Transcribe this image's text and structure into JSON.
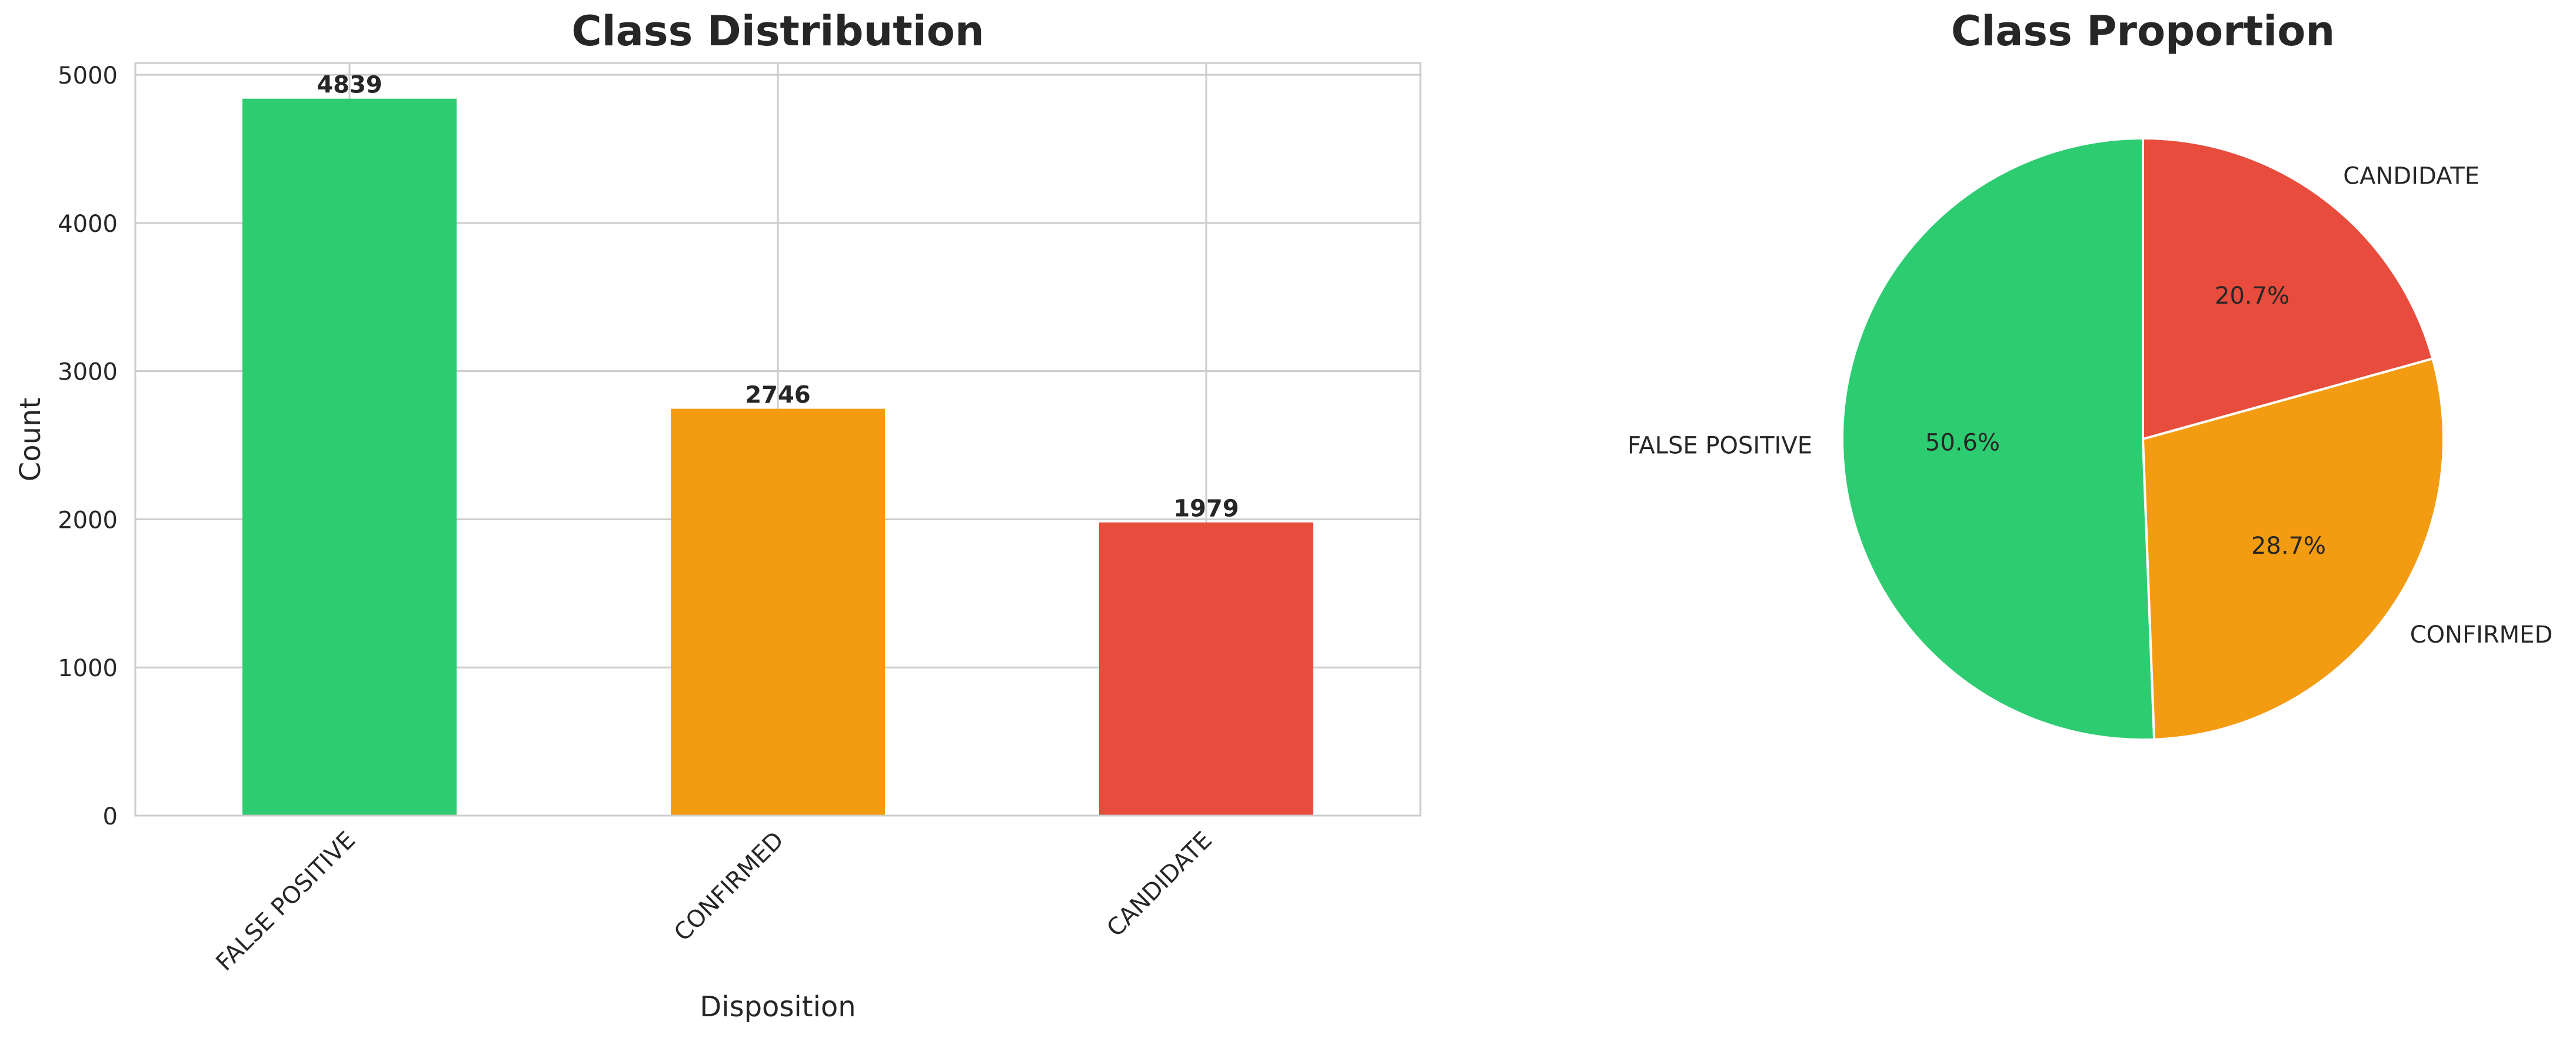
{
  "chart_data": [
    {
      "type": "bar",
      "title": "Class Distribution",
      "xlabel": "Disposition",
      "ylabel": "Count",
      "categories": [
        "FALSE POSITIVE",
        "CONFIRMED",
        "CANDIDATE"
      ],
      "values": [
        4839,
        2746,
        1979
      ],
      "value_labels": [
        "4839",
        "2746",
        "1979"
      ],
      "colors": [
        "#2ecc71",
        "#f39c12",
        "#e74c3c"
      ],
      "ylim": [
        0,
        5080
      ],
      "yticks": [
        0,
        1000,
        2000,
        3000,
        4000,
        5000
      ],
      "ytick_labels": [
        "0",
        "1000",
        "2000",
        "3000",
        "4000",
        "5000"
      ],
      "grid": true,
      "xtick_rotation": -45
    },
    {
      "type": "pie",
      "title": "Class Proportion",
      "labels": [
        "FALSE POSITIVE",
        "CONFIRMED",
        "CANDIDATE"
      ],
      "values": [
        4839,
        2746,
        1979
      ],
      "percent_labels": [
        "50.6%",
        "28.7%",
        "20.7%"
      ],
      "colors": [
        "#2ecc71",
        "#f39c12",
        "#e74c3c"
      ],
      "start_angle_deg": 90,
      "direction": "counterclockwise"
    }
  ]
}
